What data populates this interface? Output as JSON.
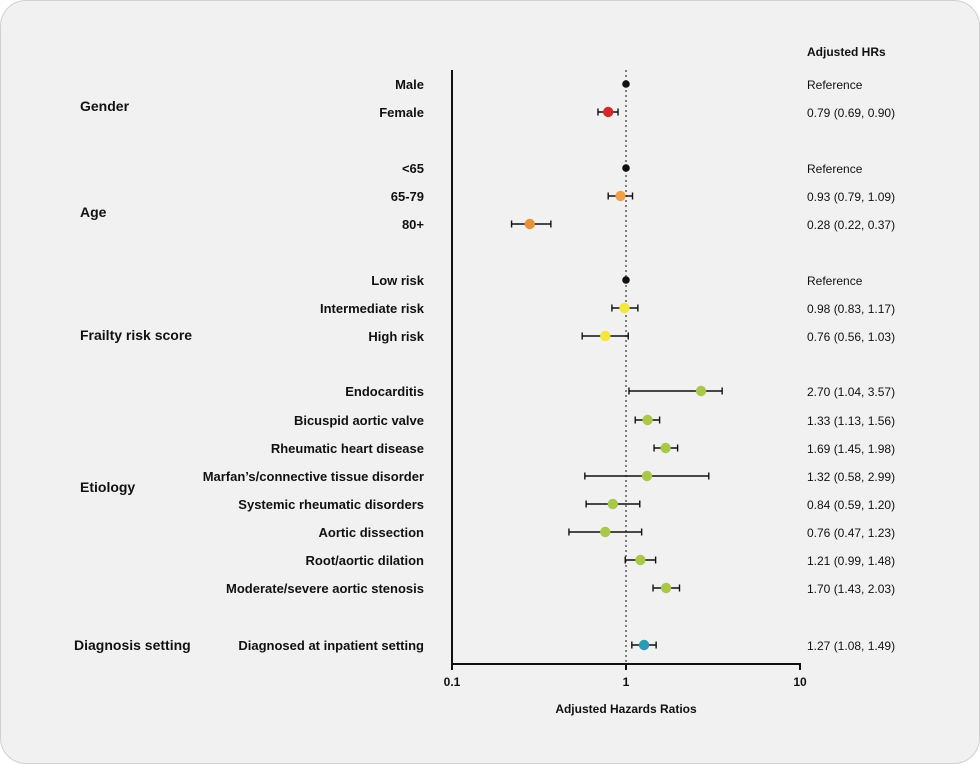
{
  "chart_data": {
    "type": "forest",
    "xscale": "log",
    "xlim": [
      0.1,
      10
    ],
    "reference_line": 1,
    "xticks": [
      "0.1",
      "1",
      "10"
    ],
    "xlabel": "Adjusted Hazards Ratios",
    "column_header": "Adjusted HRs",
    "groups": [
      {
        "label": "Gender",
        "rows": [
          {
            "label": "Male",
            "hr": 1,
            "lo": 1,
            "hi": 1,
            "text": "Reference",
            "color": "#111111"
          },
          {
            "label": "Female",
            "hr": 0.79,
            "lo": 0.69,
            "hi": 0.9,
            "text": "0.79 (0.69, 0.90)",
            "color": "#d42a26"
          }
        ]
      },
      {
        "label": "Age",
        "rows": [
          {
            "label": "<65",
            "hr": 1,
            "lo": 1,
            "hi": 1,
            "text": "Reference",
            "color": "#111111"
          },
          {
            "label": "65-79",
            "hr": 0.93,
            "lo": 0.79,
            "hi": 1.09,
            "text": "0.93 (0.79, 1.09)",
            "color": "#f0a04a"
          },
          {
            "label": "80+",
            "hr": 0.28,
            "lo": 0.22,
            "hi": 0.37,
            "text": "0.28 (0.22, 0.37)",
            "color": "#e8923a"
          }
        ]
      },
      {
        "label": "Frailty risk score",
        "rows": [
          {
            "label": "Low risk",
            "hr": 1,
            "lo": 1,
            "hi": 1,
            "text": "Reference",
            "color": "#111111"
          },
          {
            "label": "Intermediate risk",
            "hr": 0.98,
            "lo": 0.83,
            "hi": 1.17,
            "text": "0.98 (0.83, 1.17)",
            "color": "#f4e63c"
          },
          {
            "label": "High risk",
            "hr": 0.76,
            "lo": 0.56,
            "hi": 1.03,
            "text": "0.76 (0.56, 1.03)",
            "color": "#f4e63c"
          }
        ]
      },
      {
        "label": "Etiology",
        "rows": [
          {
            "label": "Endocarditis",
            "hr": 2.7,
            "lo": 1.04,
            "hi": 3.57,
            "text": "2.70 (1.04, 3.57)",
            "color": "#a9c84a"
          },
          {
            "label": "Bicuspid aortic valve",
            "hr": 1.33,
            "lo": 1.13,
            "hi": 1.56,
            "text": "1.33 (1.13, 1.56)",
            "color": "#a9c84a"
          },
          {
            "label": "Rheumatic heart disease",
            "hr": 1.69,
            "lo": 1.45,
            "hi": 1.98,
            "text": "1.69 (1.45, 1.98)",
            "color": "#a9c84a"
          },
          {
            "label": "Marfan’s/connective tissue disorder",
            "hr": 1.32,
            "lo": 0.58,
            "hi": 2.99,
            "text": "1.32 (0.58, 2.99)",
            "color": "#a9c84a"
          },
          {
            "label": "Systemic rheumatic disorders",
            "hr": 0.84,
            "lo": 0.59,
            "hi": 1.2,
            "text": "0.84 (0.59, 1.20)",
            "color": "#a9c84a"
          },
          {
            "label": "Aortic dissection",
            "hr": 0.76,
            "lo": 0.47,
            "hi": 1.23,
            "text": "0.76 (0.47, 1.23)",
            "color": "#a9c84a"
          },
          {
            "label": "Root/aortic dilation",
            "hr": 1.21,
            "lo": 0.99,
            "hi": 1.48,
            "text": "1.21 (0.99, 1.48)",
            "color": "#a9c84a"
          },
          {
            "label": "Moderate/severe aortic stenosis",
            "hr": 1.7,
            "lo": 1.43,
            "hi": 2.03,
            "text": "1.70 (1.43, 2.03)",
            "color": "#a9c84a"
          }
        ]
      },
      {
        "label": "Diagnosis setting",
        "rows": [
          {
            "label": "Diagnosed at inpatient setting",
            "hr": 1.27,
            "lo": 1.08,
            "hi": 1.49,
            "text": "1.27 (1.08, 1.49)",
            "color": "#2a9bb0"
          }
        ]
      }
    ]
  }
}
